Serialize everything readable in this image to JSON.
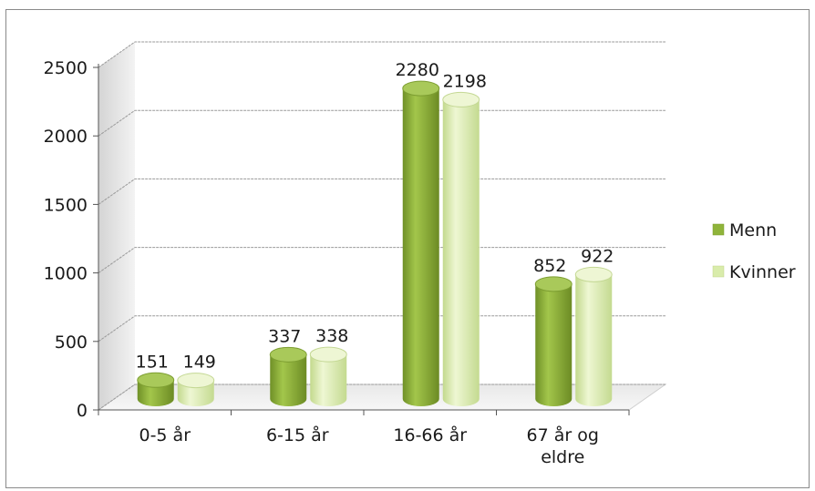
{
  "chart_data": {
    "type": "bar",
    "categories": [
      [
        "0-5 år"
      ],
      [
        "6-15 år"
      ],
      [
        "16-66 år"
      ],
      [
        "67 år og",
        "eldre"
      ]
    ],
    "series": [
      {
        "name": "Menn",
        "values": [
          151,
          337,
          2280,
          852
        ],
        "color": "#8fb43a"
      },
      {
        "name": "Kvinner",
        "values": [
          149,
          338,
          2198,
          922
        ],
        "color": "#d9ecab"
      }
    ],
    "ylim": [
      0,
      2500
    ],
    "yticks": [
      0,
      500,
      1000,
      1500,
      2000,
      2500
    ],
    "grid": true,
    "legend_position": "right",
    "style": "3d-cylinder"
  }
}
